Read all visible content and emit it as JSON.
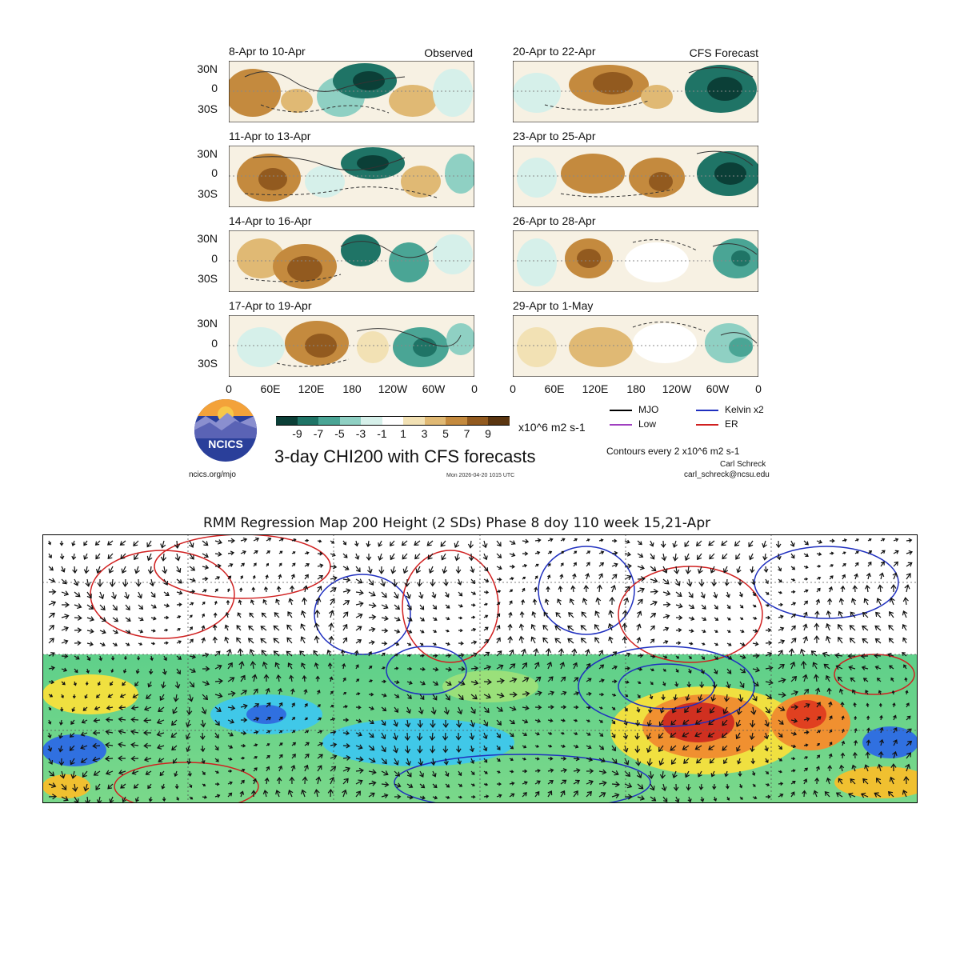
{
  "top_figure": {
    "title": "3-day CHI200 with CFS forecasts",
    "units": "x10^6 m2 s-1",
    "observed_label": "Observed",
    "forecast_label": "CFS Forecast",
    "observed_panels": [
      "8-Apr to 10-Apr",
      "11-Apr to 13-Apr",
      "14-Apr to 16-Apr",
      "17-Apr to 19-Apr"
    ],
    "forecast_panels": [
      "20-Apr to 22-Apr",
      "23-Apr to 25-Apr",
      "26-Apr to 28-Apr",
      "29-Apr to 1-May"
    ],
    "lat_labels": [
      "30N",
      "0",
      "30S"
    ],
    "lon_labels": [
      "0",
      "60E",
      "120E",
      "180",
      "120W",
      "60W",
      "0"
    ],
    "colorbar_ticks": [
      "-9",
      "-7",
      "-5",
      "-3",
      "-1",
      "1",
      "3",
      "5",
      "7",
      "9"
    ],
    "colorbar_colors": [
      "#0b3f37",
      "#1f7466",
      "#4aa595",
      "#8fd0c3",
      "#d6f0ea",
      "#ffffff",
      "#f2e1b4",
      "#e0b974",
      "#c48a3e",
      "#925a1f",
      "#5a3510"
    ],
    "legend": {
      "mjo": {
        "label": "MJO",
        "color": "#000000"
      },
      "kelvin": {
        "label": "Kelvin x2",
        "color": "#1f2fbf"
      },
      "low": {
        "label": "Low",
        "color": "#a040c0"
      },
      "er": {
        "label": "ER",
        "color": "#d02020"
      }
    },
    "contour_note": "Contours every 2 x10^6 m2 s-1",
    "author": "Carl Schreck",
    "email": "carl_schreck@ncsu.edu",
    "website": "ncics.org/mjo",
    "timestamp": "Mon 2026-04-20 1015 UTC",
    "logo_text": "NCICS"
  },
  "bottom_figure": {
    "title": "RMM Regression Map 200 Height (2 SDs) Phase 8 doy 110 week 15,21-Apr"
  }
}
